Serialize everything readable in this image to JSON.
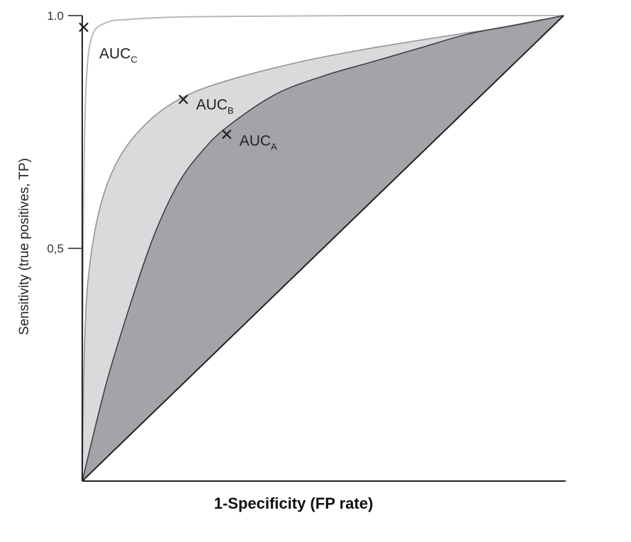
{
  "chart_data": {
    "type": "area",
    "xlabel": "1-Specificity (FP rate)",
    "ylabel": "Sensitivity (true positives, TP)",
    "xlim": [
      0,
      1
    ],
    "ylim": [
      0,
      1
    ],
    "y_ticks": [
      {
        "value": 1.0,
        "label": "1.0"
      },
      {
        "value": 0.5,
        "label": "0,5"
      }
    ],
    "grid": false,
    "legend": "none",
    "colors": {
      "region_a": "#a3a4a8",
      "region_b": "#d9dadc",
      "region_c": "#ffffff",
      "curve_c": "#b8b9bc",
      "curve_b": "#8f9094",
      "curve_a": "#3a3b3e",
      "axis": "#222222"
    },
    "series": [
      {
        "key": "C",
        "x": [
          0,
          0.001,
          0.003,
          0.008,
          0.02,
          0.05,
          0.1,
          0.2,
          0.4,
          0.6,
          0.8,
          1.0
        ],
        "y": [
          0,
          0.35,
          0.62,
          0.85,
          0.955,
          0.985,
          0.992,
          0.997,
          0.999,
          1.0,
          1.0,
          1.0
        ]
      },
      {
        "key": "B",
        "x": [
          0,
          0.005,
          0.015,
          0.04,
          0.08,
          0.14,
          0.21,
          0.3,
          0.45,
          0.6,
          0.8,
          0.9,
          1.0
        ],
        "y": [
          0,
          0.3,
          0.46,
          0.6,
          0.7,
          0.775,
          0.825,
          0.86,
          0.9,
          0.93,
          0.963,
          0.978,
          1.0
        ]
      },
      {
        "key": "A",
        "x": [
          0,
          0.05,
          0.1,
          0.15,
          0.2,
          0.25,
          0.3,
          0.4,
          0.5,
          0.6,
          0.7,
          0.8,
          0.9,
          1.0
        ],
        "y": [
          0,
          0.21,
          0.38,
          0.53,
          0.64,
          0.71,
          0.76,
          0.83,
          0.87,
          0.9,
          0.93,
          0.96,
          0.98,
          1.0
        ]
      }
    ],
    "points": [
      {
        "key": "C",
        "x": 0.003,
        "y": 0.975,
        "text": "AUC",
        "sub": "C"
      },
      {
        "key": "B",
        "x": 0.21,
        "y": 0.82,
        "text": "AUC",
        "sub": "B"
      },
      {
        "key": "A",
        "x": 0.3,
        "y": 0.745,
        "text": "AUC",
        "sub": "A"
      }
    ]
  }
}
